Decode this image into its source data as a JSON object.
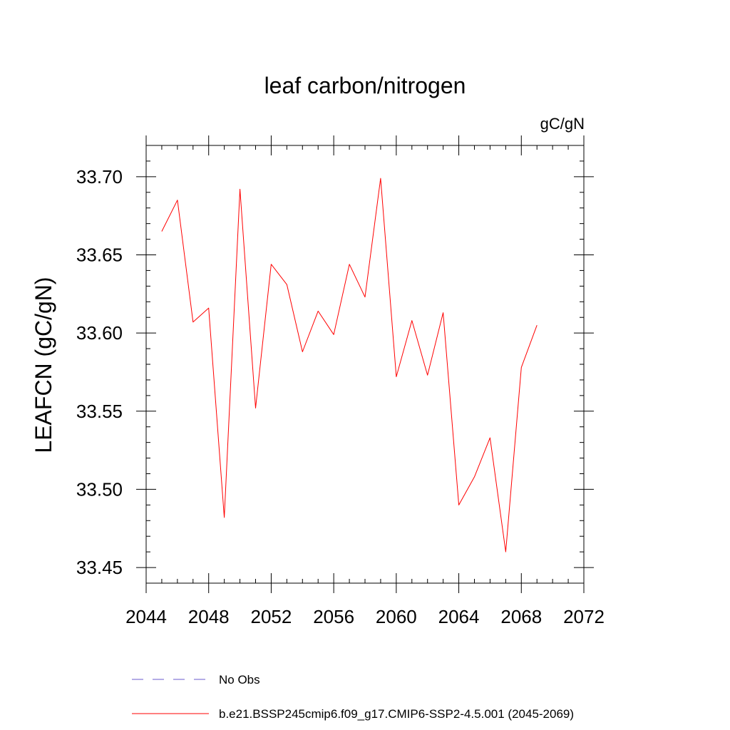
{
  "chart_data": {
    "type": "line",
    "title": "leaf carbon/nitrogen",
    "units_label": "gC/gN",
    "ylabel": "LEAFCN  (gC/gN)",
    "xlabel": "",
    "xlim": [
      2044,
      2072
    ],
    "ylim": [
      33.44,
      33.72
    ],
    "x_ticks": [
      2044,
      2048,
      2052,
      2056,
      2060,
      2064,
      2068,
      2072
    ],
    "x_tick_labels": [
      "2044",
      "2048",
      "2052",
      "2056",
      "2060",
      "2064",
      "2068",
      "2072"
    ],
    "x_minor_step": 1,
    "y_ticks": [
      33.45,
      33.5,
      33.55,
      33.6,
      33.65,
      33.7
    ],
    "y_tick_labels": [
      "33.45",
      "33.50",
      "33.55",
      "33.60",
      "33.65",
      "33.70"
    ],
    "y_minor_step": 0.01,
    "series": [
      {
        "name": "b.e21.BSSP245cmip6.f09_g17.CMIP6-SSP2-4.5.001 (2045-2069)",
        "color": "#ff0000",
        "style": "solid",
        "x": [
          2045,
          2046,
          2047,
          2048,
          2049,
          2050,
          2051,
          2052,
          2053,
          2054,
          2055,
          2056,
          2057,
          2058,
          2059,
          2060,
          2061,
          2062,
          2063,
          2064,
          2065,
          2066,
          2067,
          2068,
          2069
        ],
        "values": [
          33.665,
          33.685,
          33.607,
          33.616,
          33.482,
          33.692,
          33.552,
          33.644,
          33.631,
          33.588,
          33.614,
          33.599,
          33.644,
          33.623,
          33.699,
          33.572,
          33.608,
          33.573,
          33.613,
          33.49,
          33.508,
          33.533,
          33.46,
          33.578,
          33.605
        ]
      }
    ],
    "legend": [
      {
        "label": "No Obs",
        "color": "#6a5acd",
        "style": "dashed"
      },
      {
        "label": "b.e21.BSSP245cmip6.f09_g17.CMIP6-SSP2-4.5.001 (2045-2069)",
        "color": "#ff0000",
        "style": "solid"
      }
    ],
    "legend_position": "bottom"
  }
}
